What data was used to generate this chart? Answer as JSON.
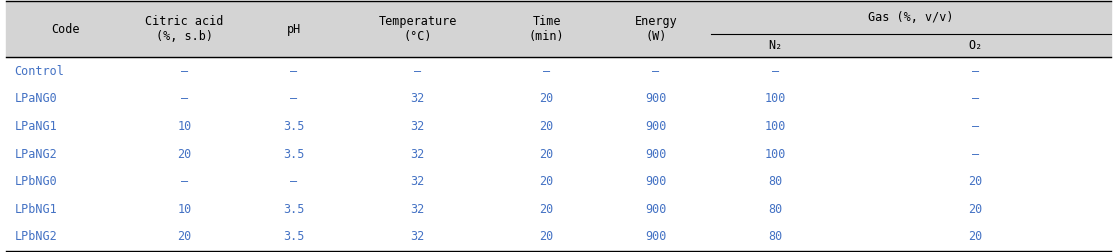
{
  "rows": [
    [
      "Control",
      "–",
      "–",
      "–",
      "–",
      "–",
      "–",
      "–"
    ],
    [
      "LPaNG0",
      "–",
      "–",
      "32",
      "20",
      "900",
      "100",
      "–"
    ],
    [
      "LPaNG1",
      "10",
      "3.5",
      "32",
      "20",
      "900",
      "100",
      "–"
    ],
    [
      "LPaNG2",
      "20",
      "3.5",
      "32",
      "20",
      "900",
      "100",
      "–"
    ],
    [
      "LPbNG0",
      "–",
      "–",
      "32",
      "20",
      "900",
      "80",
      "20"
    ],
    [
      "LPbNG1",
      "10",
      "3.5",
      "32",
      "20",
      "900",
      "80",
      "20"
    ],
    [
      "LPbNG2",
      "20",
      "3.5",
      "32",
      "20",
      "900",
      "80",
      "20"
    ]
  ],
  "header_bg": "#d4d4d4",
  "body_bg": "#ffffff",
  "code_color": "#4472c4",
  "data_color": "#4472c4",
  "header_color": "#000000",
  "font_size": 8.5,
  "header_font_size": 8.5,
  "fig_width": 11.13,
  "fig_height": 2.52,
  "dpi": 100
}
